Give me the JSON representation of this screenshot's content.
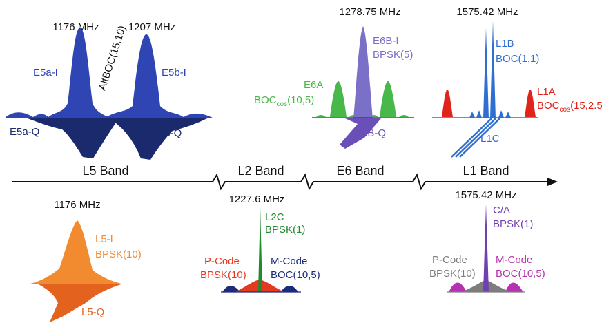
{
  "colors": {
    "galileo_blue": "#2f45b3",
    "galileo_dark": "#1a2a6c",
    "e6_purple": "#7a70c8",
    "e6_dark": "#6b4fb8",
    "e6_green": "#49b84a",
    "l1_blue": "#2f6fd0",
    "l1_red": "#e0231b",
    "gps_orange": "#f28b30",
    "gps_orange_dark": "#e2621e",
    "gps_green": "#1f8a2e",
    "gps_red": "#e33a1f",
    "gps_navy": "#1e2a7a",
    "gps_violet": "#7040b0",
    "gps_gray": "#7d7d7d",
    "gps_magenta": "#b533b0"
  },
  "bands": {
    "l5": "L5 Band",
    "l2": "L2 Band",
    "e6": "E6 Band",
    "l1": "L1 Band"
  },
  "galileo": {
    "e5a_freq": "1176 MHz",
    "e5b_freq": "1207 MHz",
    "e5a_i": "E5a-I",
    "e5a_q": "E5a-Q",
    "e5b_i": "E5b-I",
    "e5b_q": "E5b-Q",
    "altboc": "AltBOC(15,10)",
    "e6_freq": "1278.75 MHz",
    "e6b_i": "E6B-I",
    "e6b_mod": "BPSK(5)",
    "e6a": "E6A",
    "e6a_mod_prefix": "BOC",
    "e6a_mod_sub": "cos",
    "e6a_mod_suffix": "(10,5)",
    "e6b_q": "E6B-Q",
    "l1_freq": "1575.42 MHz",
    "l1b": "L1B",
    "l1b_mod": "BOC(1,1)",
    "l1a": "L1A",
    "l1a_mod_prefix": "BOC",
    "l1a_mod_sub": "cos",
    "l1a_mod_suffix": "(15,2.5",
    "l1c": "L1C"
  },
  "gps": {
    "l5_freq": "1176 MHz",
    "l5_i": "L5-I",
    "l5_mod": "BPSK(10)",
    "l5_q": "L5-Q",
    "l2_freq": "1227.6 MHz",
    "l2c": "L2C",
    "l2c_mod": "BPSK(1)",
    "l2_pcode": "P-Code",
    "l2_pcode_mod": "BPSK(10)",
    "l2_mcode": "M-Code",
    "l2_mcode_mod": "BOC(10,5)",
    "l1_freq": "1575.42 MHz",
    "ca": "C/A",
    "ca_mod": "BPSK(1)",
    "l1_pcode": "P-Code",
    "l1_pcode_mod": "BPSK(10)",
    "l1_mcode": "M-Code",
    "l1_mcode_mod": "BOC(10,5)"
  }
}
